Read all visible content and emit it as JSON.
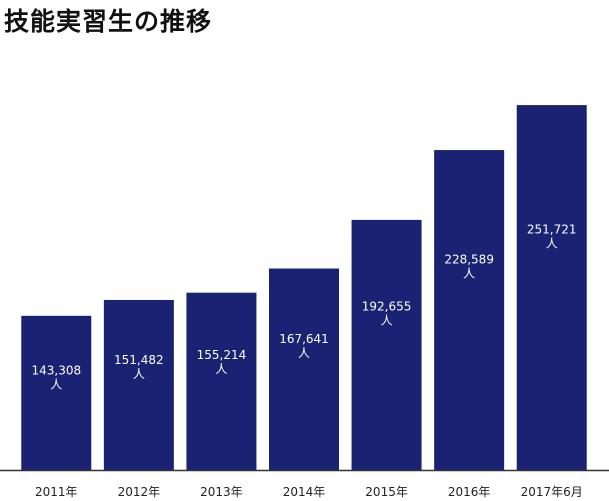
{
  "chart_data": {
    "type": "bar",
    "title": "技能実習生の推移",
    "categories": [
      "2011年",
      "2012年",
      "2013年",
      "2014年",
      "2015年",
      "2016年",
      "2017年6月"
    ],
    "values": [
      143308,
      151482,
      155214,
      167641,
      192655,
      228589,
      251721
    ],
    "value_labels": [
      "143,308",
      "151,482",
      "155,214",
      "167,641",
      "192,655",
      "228,589",
      "251,721"
    ],
    "unit": "人",
    "bar_color": "#1a2273",
    "value_label_color": "#ffffff",
    "baseline_color": "#333333",
    "ylim": [
      64000,
      260000
    ],
    "grid": false,
    "legend": "none"
  }
}
